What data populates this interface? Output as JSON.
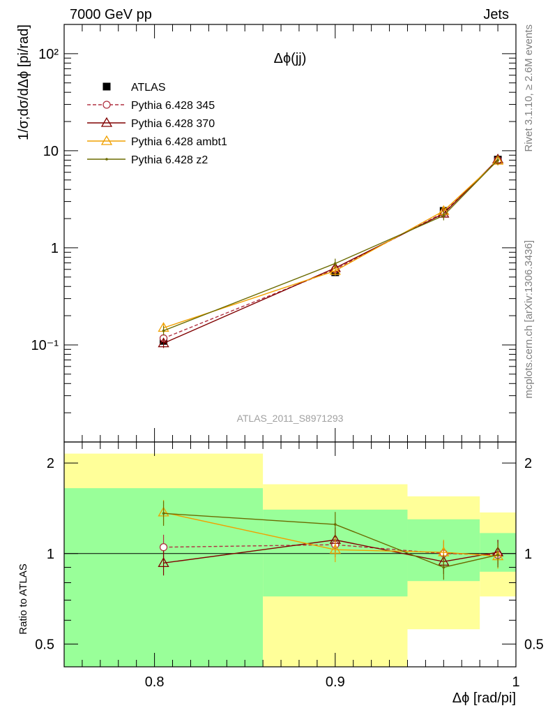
{
  "header": {
    "left": "7000 GeV pp",
    "right": "Jets"
  },
  "side_labels": {
    "top": "Rivet 3.1.10, ≥ 2.6M events",
    "bottom": "mcplots.cern.ch [arXiv:1306.3436]"
  },
  "chart_data": [
    {
      "type": "line",
      "title": "Δϕ(jj)",
      "watermark": "ATLAS_2011_S8971293",
      "ylabel": "1/σ;dσ/dΔϕ [pi/rad]",
      "xlabel": "",
      "yscale": "log",
      "xlim": [
        0.75,
        1.0
      ],
      "ylim": [
        0.01,
        200
      ],
      "yticks": [
        {
          "value": 0.1,
          "label": "10⁻¹"
        },
        {
          "value": 1,
          "label": "1"
        },
        {
          "value": 10,
          "label": "10"
        },
        {
          "value": 100,
          "label": "10²"
        }
      ],
      "legend_placement": "top-left",
      "x": [
        0.805,
        0.9,
        0.96,
        0.99
      ],
      "series": [
        {
          "name": "ATLAS",
          "color": "#000000",
          "marker": "filled-square",
          "dashed": false,
          "values": [
            0.11,
            0.56,
            2.4,
            8.1
          ]
        },
        {
          "name": "Pythia 6.428 345",
          "color": "#b03040",
          "marker": "open-circle",
          "dashed": true,
          "values": [
            0.117,
            0.6,
            2.3,
            8.0
          ]
        },
        {
          "name": "Pythia 6.428 370",
          "color": "#800000",
          "marker": "open-triangle",
          "dashed": false,
          "values": [
            0.104,
            0.62,
            2.25,
            8.15
          ]
        },
        {
          "name": "Pythia 6.428 ambt1",
          "color": "#f0a000",
          "marker": "open-triangle",
          "dashed": false,
          "values": [
            0.15,
            0.58,
            2.4,
            7.9
          ]
        },
        {
          "name": "Pythia 6.428 z2",
          "color": "#6b6b00",
          "marker": "dot",
          "dashed": false,
          "values": [
            0.14,
            0.69,
            2.15,
            8.0
          ]
        }
      ]
    },
    {
      "type": "line",
      "ylabel": "Ratio to ATLAS",
      "xlabel": "Δϕ [rad/pi]",
      "xlim": [
        0.75,
        1.0
      ],
      "ylim": [
        0.42,
        2.35
      ],
      "yscale": "log",
      "xticks": [
        {
          "value": 0.8,
          "label": "0.8"
        },
        {
          "value": 0.9,
          "label": "0.9"
        },
        {
          "value": 1.0,
          "label": "1"
        }
      ],
      "yticks": [
        {
          "value": 0.5,
          "label": "0.5"
        },
        {
          "value": 1,
          "label": "1"
        },
        {
          "value": 2,
          "label": "2"
        }
      ],
      "bands": [
        {
          "x0": 0.75,
          "x1": 0.86,
          "yellow": [
            0.35,
            2.15
          ],
          "green": [
            0.36,
            1.65
          ]
        },
        {
          "x0": 0.86,
          "x1": 0.94,
          "yellow": [
            0.36,
            1.7
          ],
          "green": [
            0.72,
            1.4
          ]
        },
        {
          "x0": 0.94,
          "x1": 0.98,
          "yellow": [
            0.56,
            1.55
          ],
          "green": [
            0.81,
            1.3
          ]
        },
        {
          "x0": 0.98,
          "x1": 1.0,
          "yellow": [
            0.72,
            1.37
          ],
          "green": [
            0.87,
            1.17
          ]
        }
      ],
      "x": [
        0.805,
        0.9,
        0.96,
        0.99
      ],
      "series": [
        {
          "name": "Pythia 6.428 345",
          "color": "#b03040",
          "marker": "open-circle",
          "dashed": true,
          "values": [
            1.05,
            1.07,
            1.0,
            0.99
          ]
        },
        {
          "name": "Pythia 6.428 370",
          "color": "#800000",
          "marker": "open-triangle",
          "dashed": false,
          "values": [
            0.93,
            1.11,
            0.94,
            1.01
          ]
        },
        {
          "name": "Pythia 6.428 ambt1",
          "color": "#f0a000",
          "marker": "open-triangle",
          "dashed": false,
          "values": [
            1.37,
            1.03,
            1.01,
            0.98
          ]
        },
        {
          "name": "Pythia 6.428 z2",
          "color": "#6b6b00",
          "marker": "dot",
          "dashed": false,
          "values": [
            1.36,
            1.25,
            0.9,
            0.99
          ]
        }
      ]
    }
  ]
}
